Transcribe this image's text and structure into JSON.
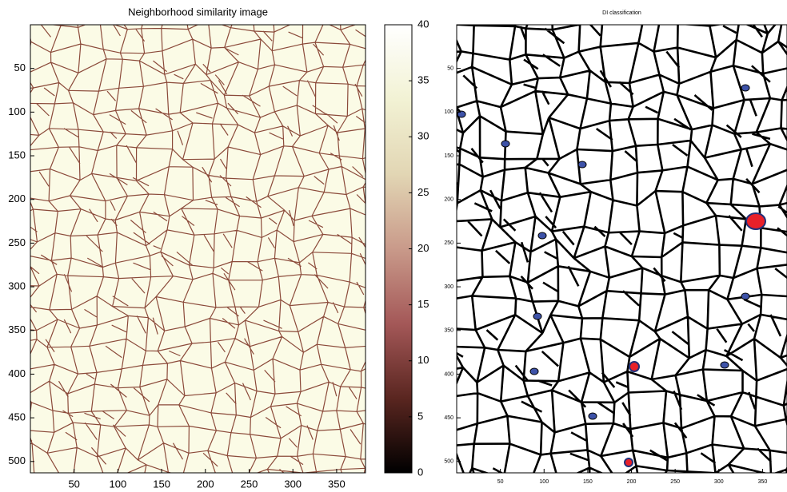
{
  "chart_data": [
    {
      "type": "image",
      "title": "Neighborhood similarity image",
      "xlim": [
        0,
        383
      ],
      "ylim": [
        0,
        513
      ],
      "y_reversed": true,
      "xticks": [
        50,
        100,
        150,
        200,
        250,
        300,
        350
      ],
      "yticks": [
        50,
        100,
        150,
        200,
        250,
        300,
        350,
        400,
        450,
        500
      ],
      "background": "#fbfbe6",
      "boundary_color": "#8b4a3a",
      "colorbar": {
        "lim": [
          0,
          40
        ],
        "ticks": [
          0,
          5,
          10,
          15,
          20,
          25,
          30,
          35,
          40
        ],
        "colormap": [
          "#000000",
          "#5a2620",
          "#a45858",
          "#c99a8a",
          "#e2d6b4",
          "#f2f2d4",
          "#ffffff"
        ]
      }
    },
    {
      "type": "image",
      "title": "DI classification",
      "xlim": [
        0,
        378
      ],
      "ylim": [
        0,
        513
      ],
      "y_reversed": true,
      "xticks": [
        50,
        100,
        150,
        200,
        250,
        300,
        350
      ],
      "yticks": [
        50,
        100,
        150,
        200,
        250,
        300,
        350,
        400,
        450,
        500
      ],
      "background": "#ffffff",
      "boundary_color": "#000000"
    }
  ]
}
